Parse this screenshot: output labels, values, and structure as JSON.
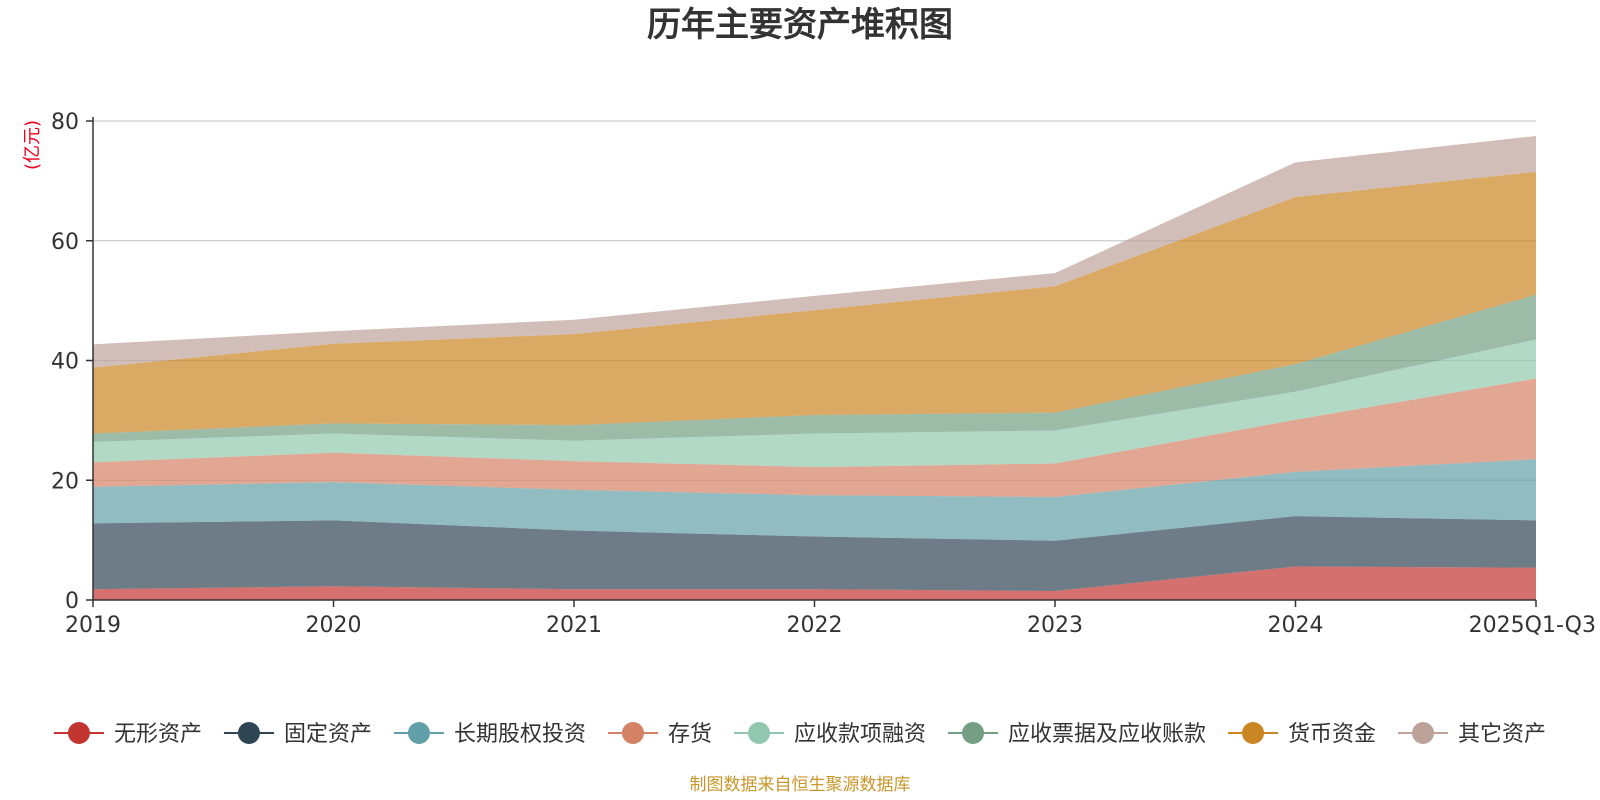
{
  "chart_data": {
    "type": "area",
    "stacked": true,
    "title": "历年主要资产堆积图",
    "ylabel": "(亿元)",
    "xlabel": "",
    "ylim": [
      0,
      80
    ],
    "yticks": [
      0,
      20,
      40,
      60,
      80
    ],
    "grid": true,
    "legend_position": "bottom",
    "categories": [
      "2019",
      "2020",
      "2021",
      "2022",
      "2023",
      "2024",
      "2025Q1-Q3"
    ],
    "series": [
      {
        "name": "无形资产",
        "color": "#c23531",
        "values": [
          1.8,
          2.3,
          1.8,
          1.8,
          1.5,
          5.6,
          5.4
        ]
      },
      {
        "name": "固定资产",
        "color": "#2f4554",
        "values": [
          11.0,
          11.0,
          9.8,
          8.8,
          8.4,
          8.4,
          7.9
        ]
      },
      {
        "name": "长期股权投资",
        "color": "#61a0a8",
        "values": [
          6.1,
          6.4,
          6.8,
          6.9,
          7.3,
          7.4,
          10.2
        ]
      },
      {
        "name": "存货",
        "color": "#d48265",
        "values": [
          4.1,
          4.9,
          4.8,
          4.7,
          5.6,
          8.7,
          13.5
        ]
      },
      {
        "name": "应收款项融资",
        "color": "#91c7ae",
        "values": [
          3.4,
          3.2,
          3.4,
          5.6,
          5.5,
          4.7,
          6.5
        ]
      },
      {
        "name": "应收票据及应收账款",
        "color": "#749f83",
        "values": [
          1.4,
          1.7,
          2.6,
          3.1,
          3.0,
          4.6,
          7.5
        ]
      },
      {
        "name": "货币资金",
        "color": "#ca8622",
        "values": [
          11.0,
          13.3,
          15.2,
          17.5,
          21.1,
          27.9,
          20.5
        ]
      },
      {
        "name": "其它资产",
        "color": "#bda29a",
        "values": [
          3.9,
          2.1,
          2.4,
          2.4,
          2.2,
          5.8,
          6.0
        ]
      }
    ],
    "source": "制图数据来自恒生聚源数据库"
  }
}
